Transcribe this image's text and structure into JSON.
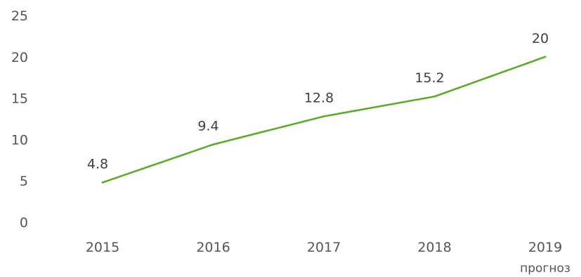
{
  "chart_data": {
    "type": "line",
    "categories": [
      "2015",
      "2016",
      "2017",
      "2018",
      "2019"
    ],
    "category_sublabels": [
      "",
      "",
      "",
      "",
      "прогноз"
    ],
    "series": [
      {
        "values": [
          4.8,
          9.4,
          12.8,
          15.2,
          20
        ]
      }
    ],
    "data_labels": [
      "4.8",
      "9.4",
      "12.8",
      "15.2",
      "20"
    ],
    "y_ticks": [
      "0",
      "5",
      "10",
      "15",
      "20",
      "25"
    ],
    "ylim": [
      0,
      25
    ],
    "grid": false,
    "legend": "none",
    "line_color": "#5aab2e",
    "title": "",
    "xlabel": "",
    "ylabel": ""
  }
}
